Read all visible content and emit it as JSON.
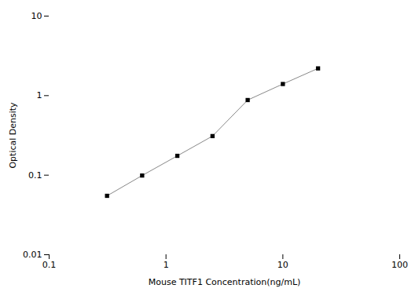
{
  "chart_data": {
    "type": "line",
    "x": [
      0.313,
      0.625,
      1.25,
      2.5,
      5.0,
      10.0,
      20.0
    ],
    "values": [
      0.055,
      0.099,
      0.175,
      0.31,
      0.88,
      1.4,
      2.2
    ],
    "xlabel": "Mouse TITF1 Concentration(ng/mL)",
    "ylabel": "Optical Density",
    "xlim": [
      0.1,
      100
    ],
    "ylim": [
      0.01,
      10
    ],
    "xticks": [
      0.1,
      1,
      10,
      100
    ],
    "yticks": [
      0.01,
      0.1,
      1,
      10
    ],
    "log": true,
    "color": "#888888",
    "marker": "square"
  }
}
